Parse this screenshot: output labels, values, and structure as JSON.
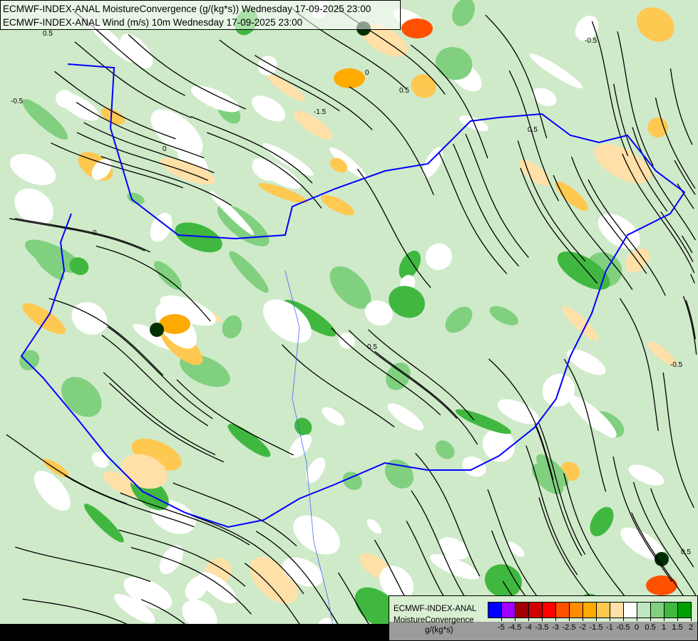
{
  "header": {
    "line1": "ECMWF-INDEX-ANAL MoistureConvergence (g/(kg*s)) Wednesday 17-09-2025 23:00",
    "line2": "ECMWF-INDEX-ANAL Wind (m/s) 10m Wednesday 17-09-2025 23:00"
  },
  "legend": {
    "model": "ECMWF-INDEX-ANAL",
    "parameter": "MoistureConvergence",
    "unit": "g/(kg*s)",
    "colors": [
      "#0000ff",
      "#a000ff",
      "#a00000",
      "#d00000",
      "#ff0000",
      "#ff5000",
      "#ff8c00",
      "#ffaa00",
      "#ffc850",
      "#ffe0a8",
      "#ffffff",
      "#c0e8c0",
      "#80d080",
      "#40b840",
      "#00a000"
    ],
    "ticks": [
      "-5",
      "-4.5",
      "-4",
      "-3.5",
      "-3",
      "-2.5",
      "-2",
      "-1.5",
      "-1",
      "-0.5",
      "0",
      "0.5",
      "1",
      "1.5",
      "2"
    ]
  },
  "map": {
    "contour_labels": [
      "-0.5",
      "0.5",
      "0",
      "-1.5",
      "0.5",
      "0",
      "-0.5",
      "0.5",
      "0",
      "0.5",
      "-0.5",
      "0.5"
    ],
    "border_color": "#0000ff",
    "streamline_color": "#000000"
  }
}
